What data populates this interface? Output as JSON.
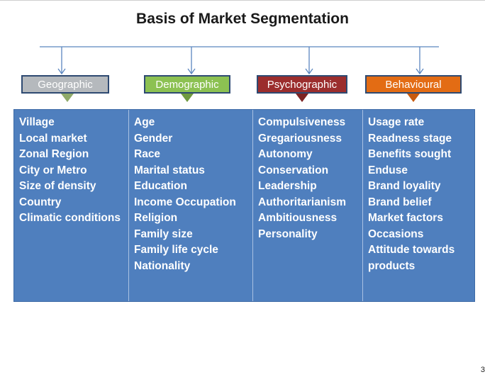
{
  "title": "Basis of Market Segmentation",
  "page_number": "3",
  "categories": [
    {
      "label": "Geographic",
      "color": "#b5b9bd",
      "arrow_color": "#8faa6a",
      "items": [
        "Village",
        "Local market",
        "Zonal Region",
        "City or Metro",
        "Size of density",
        "Country",
        "Climatic conditions"
      ]
    },
    {
      "label": "Demographic",
      "color": "#8cc152",
      "arrow_color": "#6f9a3f",
      "items": [
        "Age",
        "Gender",
        "Race",
        "Marital status",
        "Education",
        "Income Occupation",
        "Religion",
        "Family size",
        "Family life cycle",
        "Nationality"
      ]
    },
    {
      "label": "Psychographic",
      "color": "#9b2d2d",
      "arrow_color": "#7d2323",
      "items": [
        "Compulsiveness",
        "Gregariousness",
        "Autonomy",
        "Conservation",
        "Leadership",
        "Authoritarianism",
        "Ambitiousness",
        "Personality"
      ]
    },
    {
      "label": "Behavioural",
      "color": "#e36c14",
      "arrow_color": "#c85a0e",
      "items": [
        "Usage rate",
        "Readness  stage",
        "Benefits sought",
        "Enduse",
        "Brand loyality",
        "Brand belief",
        "Market factors",
        "Occasions",
        "Attitude towards",
        "products"
      ]
    }
  ]
}
